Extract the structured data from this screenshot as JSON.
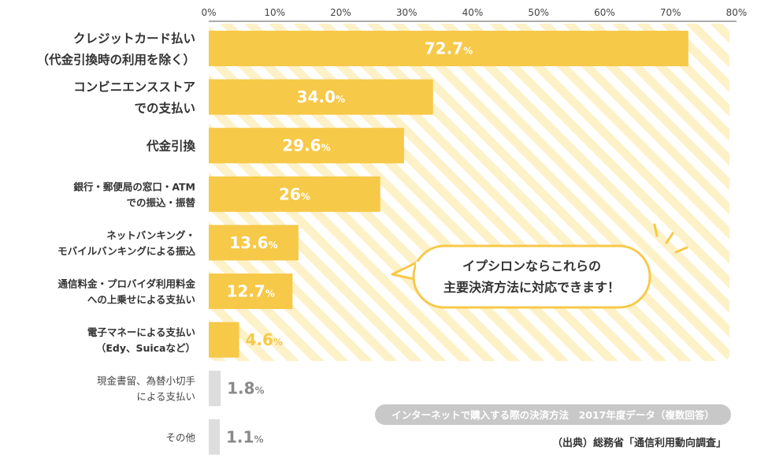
{
  "chart_data": {
    "type": "bar",
    "orientation": "horizontal",
    "xlim": [
      0,
      80
    ],
    "x_ticks": [
      "0%",
      "10%",
      "20%",
      "30%",
      "40%",
      "50%",
      "60%",
      "70%",
      "80%"
    ],
    "value_unit": "%",
    "categories": [
      [
        "クレジットカード払い",
        "（代金引換時の利用を除く）"
      ],
      [
        "コンビニエンスストア",
        "での支払い"
      ],
      [
        "代金引換"
      ],
      [
        "銀行・郵便局の窓口・ATM",
        "での振込・振替"
      ],
      [
        "ネットバンキング・",
        "モバイルバンキングによる振込"
      ],
      [
        "通信料金・プロバイダ利用料金",
        "への上乗せによる支払い"
      ],
      [
        "電子マネーによる支払い",
        "（Edy、Suicaなど）"
      ],
      [
        "現金書留、為替小切手",
        "による支払い"
      ],
      [
        "その他"
      ]
    ],
    "values": [
      72.7,
      34.0,
      29.6,
      26,
      13.6,
      12.7,
      4.6,
      1.8,
      1.1
    ],
    "value_labels": [
      "72.7",
      "34.0",
      "29.6",
      "26",
      "13.6",
      "12.7",
      "4.6",
      "1.8",
      "1.1"
    ],
    "highlight_count": 7,
    "colors": {
      "bar": "#f7c948",
      "bar_gray": "#dddddd",
      "stripe": "#fdf1c8",
      "text": "#333333"
    }
  },
  "callout": {
    "lines": [
      "イプシロンならこれらの",
      "主要決済方法に対応できます！"
    ]
  },
  "note": "インターネットで購入する際の決済方法　2017年度データ（複数回答）",
  "source": "（出典）総務省「通信利用動向調査」"
}
